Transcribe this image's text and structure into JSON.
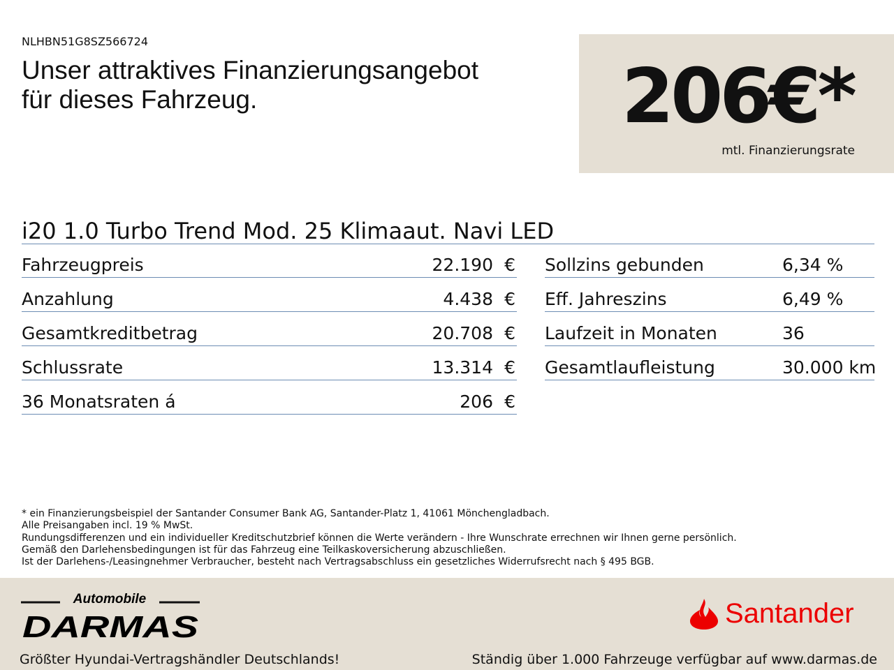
{
  "vin": "NLHBN51G8SZ566724",
  "headline": [
    "Unser attraktives Finanzierungsangebot",
    "für dieses Fahrzeug."
  ],
  "price": {
    "value": "206€*",
    "label": "mtl. Finanzierungsrate"
  },
  "model": "i20 1.0 Turbo Trend Mod. 25 Klimaaut. Navi LED",
  "left_rows": [
    {
      "label": "Fahrzeugpreis",
      "value": "22.190",
      "unit": "€"
    },
    {
      "label": "Anzahlung",
      "value": "4.438",
      "unit": "€"
    },
    {
      "label": "Gesamtkreditbetrag",
      "value": "20.708",
      "unit": "€"
    },
    {
      "label": "Schlussrate",
      "value": "13.314",
      "unit": "€"
    },
    {
      "label": "36 Monatsraten á",
      "value": "206",
      "unit": "€"
    }
  ],
  "right_rows": [
    {
      "label": "Sollzins gebunden",
      "value": "6,34 %"
    },
    {
      "label": "Eff. Jahreszins",
      "value": "6,49 %"
    },
    {
      "label": "Laufzeit in Monaten",
      "value": "36"
    },
    {
      "label": "Gesamtlaufleistung",
      "value": "30.000 km"
    }
  ],
  "disclaimer": [
    "* ein Finanzierungsbeispiel der Santander Consumer Bank AG, Santander-Platz 1, 41061 Mönchengladbach.",
    "Alle Preisangaben incl. 19 % MwSt.",
    "Rundungsdifferenzen und ein individueller Kreditschutzbrief können die Werte verändern - Ihre Wunschrate errechnen wir Ihnen gerne persönlich.",
    "Gemäß den Darlehensbedingungen ist für das Fahrzeug eine Teilkaskoversicherung abzuschließen.",
    "Ist der Darlehens-/Leasingnehmer Verbraucher, besteht nach Vertragsabschluss ein gesetzliches Widerrufsrecht nach § 495 BGB."
  ],
  "footer": {
    "dealer_logo": {
      "top": "Automobile",
      "main": "DARMAS"
    },
    "bank_logo": "Santander",
    "bank_color": "#ec0000",
    "left_text": "Größter Hyundai-Vertragshändler Deutschlands!",
    "right_text": "Ständig über 1.000 Fahrzeuge verfügbar auf www.darmas.de"
  }
}
